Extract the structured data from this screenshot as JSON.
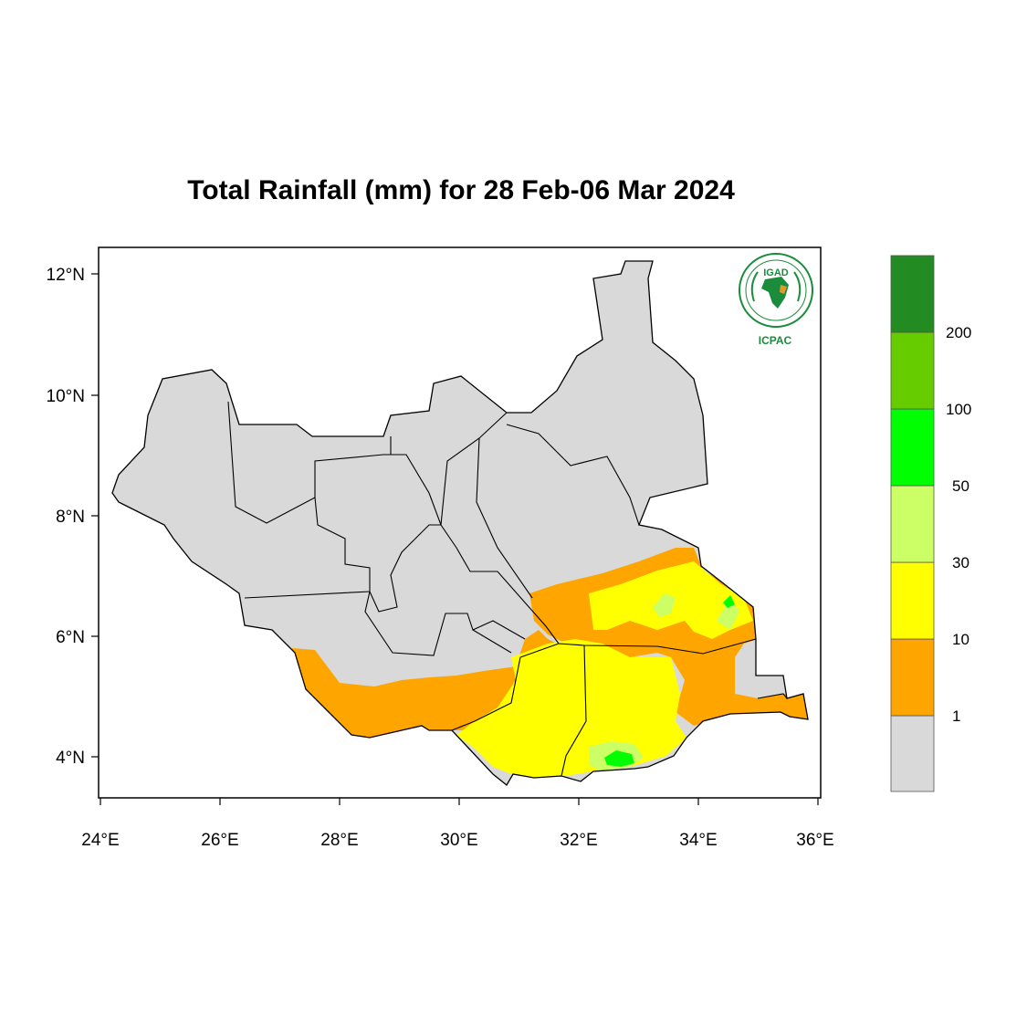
{
  "title": "Total Rainfall (mm) for 28 Feb-06 Mar 2024",
  "logo": {
    "name": "IGAD",
    "org": "ICPAC"
  },
  "axes": {
    "x_ticks": [
      "24°E",
      "26°E",
      "28°E",
      "30°E",
      "32°E",
      "34°E",
      "36°E"
    ],
    "y_ticks": [
      "12°N",
      "10°N",
      "8°N",
      "6°N",
      "4°N"
    ]
  },
  "legend": {
    "bins": [
      {
        "color": "#d9d9d9"
      },
      {
        "color": "#ffa500"
      },
      {
        "color": "#ffff00"
      },
      {
        "color": "#ccff66"
      },
      {
        "color": "#00ff00"
      },
      {
        "color": "#66cc00"
      },
      {
        "color": "#228b22"
      }
    ],
    "labels": [
      "1",
      "10",
      "30",
      "50",
      "100",
      "200"
    ]
  },
  "colors": {
    "no_rain": "#d9d9d9",
    "rain_1_10": "#ffa500",
    "rain_10_30": "#ffff00",
    "rain_30_50": "#ccff66",
    "rain_50_100": "#00ff00",
    "logo_green": "#1a8c3c"
  }
}
